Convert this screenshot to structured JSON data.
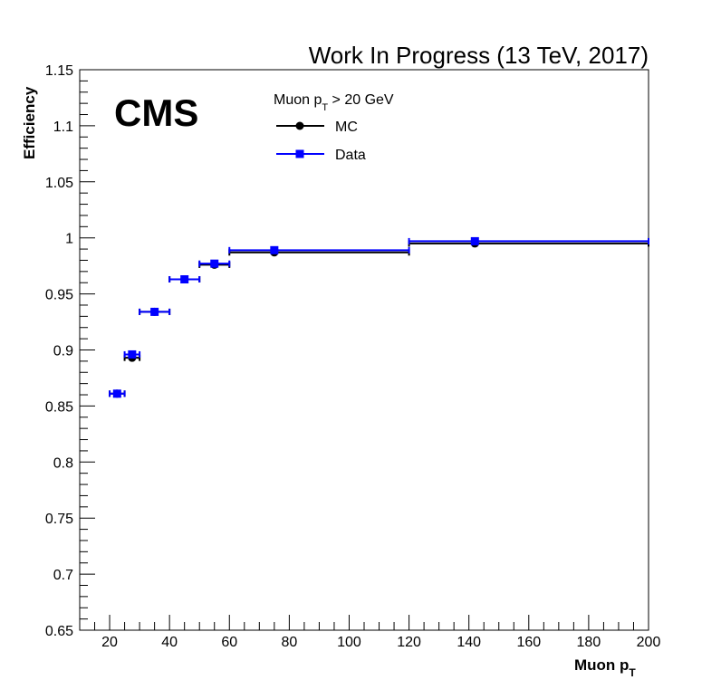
{
  "chart_data": {
    "type": "scatter",
    "title": "Work In Progress (13 TeV, 2017)",
    "experiment_label": "CMS",
    "xlabel": {
      "main": "Muon p",
      "sub": "T"
    },
    "ylabel": "Efficiency",
    "xlim": [
      10,
      200
    ],
    "ylim": [
      0.65,
      1.15
    ],
    "x_ticks": [
      20,
      40,
      60,
      80,
      100,
      120,
      140,
      160,
      180,
      200
    ],
    "y_ticks": [
      0.65,
      0.7,
      0.75,
      0.8,
      0.85,
      0.9,
      0.95,
      1,
      1.05,
      1.1,
      1.15
    ],
    "x_ticks_labels": [
      "20",
      "40",
      "60",
      "80",
      "100",
      "120",
      "140",
      "160",
      "180",
      "200"
    ],
    "y_ticks_labels": [
      "0.65",
      "0.7",
      "0.75",
      "0.8",
      "0.85",
      "0.9",
      "0.95",
      "1",
      "1.05",
      "1.1",
      "1.15"
    ],
    "grid": false,
    "legend": {
      "placement": "top-center",
      "header": {
        "main": "Muon p",
        "sub": "T",
        "suffix": " > 20 GeV"
      },
      "entries": [
        "MC",
        "Data"
      ]
    },
    "series": [
      {
        "name": "MC",
        "color": "#000000",
        "marker": "circle",
        "points": [
          {
            "x": 22.5,
            "xlo": 20,
            "xhi": 25,
            "y": 0.861
          },
          {
            "x": 27.5,
            "xlo": 25,
            "xhi": 30,
            "y": 0.893
          },
          {
            "x": 35,
            "xlo": 30,
            "xhi": 40,
            "y": 0.934
          },
          {
            "x": 45,
            "xlo": 40,
            "xhi": 50,
            "y": 0.963
          },
          {
            "x": 55,
            "xlo": 50,
            "xhi": 60,
            "y": 0.976
          },
          {
            "x": 75,
            "xlo": 60,
            "xhi": 120,
            "y": 0.987
          },
          {
            "x": 142,
            "xlo": 120,
            "xhi": 200,
            "y": 0.995
          }
        ]
      },
      {
        "name": "Data",
        "color": "#0000ff",
        "marker": "square",
        "points": [
          {
            "x": 22.5,
            "xlo": 20,
            "xhi": 25,
            "y": 0.861
          },
          {
            "x": 27.5,
            "xlo": 25,
            "xhi": 30,
            "y": 0.896
          },
          {
            "x": 35,
            "xlo": 30,
            "xhi": 40,
            "y": 0.934
          },
          {
            "x": 45,
            "xlo": 40,
            "xhi": 50,
            "y": 0.963
          },
          {
            "x": 55,
            "xlo": 50,
            "xhi": 60,
            "y": 0.977
          },
          {
            "x": 75,
            "xlo": 60,
            "xhi": 120,
            "y": 0.989
          },
          {
            "x": 142,
            "xlo": 120,
            "xhi": 200,
            "y": 0.997
          }
        ]
      }
    ]
  }
}
